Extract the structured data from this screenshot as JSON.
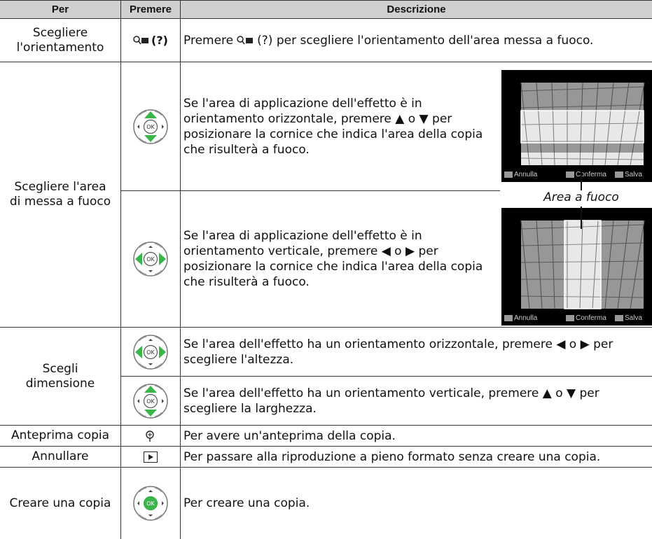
{
  "table": {
    "headers": [
      "Per",
      "Premere",
      "Descrizione"
    ],
    "rows": [
      {
        "per": "Scegliere l'orientamento",
        "premere": "(?)",
        "descrizione": [
          "Premere",
          "(?) per scegliere l'orientamento dell'area messa a fuoco."
        ]
      },
      {
        "per": "Scegliere l'area di messa a fuoco",
        "items": [
          {
            "descrizione": "Se l'area di applicazione dell'effetto è in orientamento orizzontale, premere ▲ o ▼  per posizionare la cornice che indica l'area della copia che risulterà a fuoco."
          },
          {
            "descrizione": "Se l'area di applicazione dell'effetto è in orientamento verticale, premere ◀ o ▶  per posizionare la cornice che indica l'area della copia che risulterà a fuoco."
          }
        ],
        "caption": "Area a fuoco"
      },
      {
        "per": "Scegli dimensione",
        "items": [
          {
            "descrizione": "Se l'area dell'effetto ha un orientamento orizzontale, premere ◀ o ▶ per scegliere l'altezza."
          },
          {
            "descrizione": "Se l'area dell'effetto ha un orientamento verticale, premere ▲ o ▼ per scegliere la larghezza."
          }
        ]
      },
      {
        "per": "Anteprima copia",
        "descrizione": "Per avere un'anteprima della copia."
      },
      {
        "per": "Annullare",
        "descrizione": "Per passare alla riproduzione a pieno formato senza creare una copia."
      },
      {
        "per": "Creare una copia",
        "descrizione": "Per creare una copia."
      }
    ]
  },
  "dial_label": "OK",
  "screen_labels": [
    "Annulla",
    "Conferma",
    "Salva"
  ]
}
